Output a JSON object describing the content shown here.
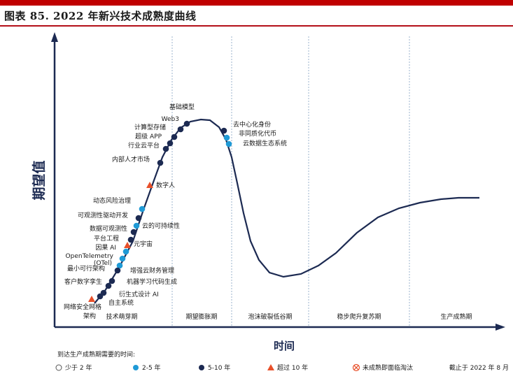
{
  "figure_title": "图表 85. 2022 年新兴技术成熟度曲线",
  "chart_data": {
    "type": "line",
    "title": "图表 85. 2022 年新兴技术成熟度曲线",
    "xlabel": "时间",
    "ylabel": "期望值",
    "phases": [
      "技术萌芽期",
      "期望膨胀期",
      "泡沫破裂低谷期",
      "稳步爬升复苏期",
      "生产成熟期"
    ],
    "legend_title": "到达生产成熟期需要的时间:",
    "legend": [
      {
        "key": "lt2",
        "label": "少于 2 年",
        "marker": "circle-open",
        "color": "#ffffff"
      },
      {
        "key": "2to5",
        "label": "2-5 年",
        "marker": "circle",
        "color": "#1f9ad6"
      },
      {
        "key": "5to10",
        "label": "5-10 年",
        "marker": "circle",
        "color": "#1c2a52"
      },
      {
        "key": "gt10",
        "label": "超过 10 年",
        "marker": "triangle",
        "color": "#e8502a"
      },
      {
        "key": "obsolete",
        "label": "未成熟即面临淘汰",
        "marker": "x-circle",
        "color": "#e8502a"
      }
    ],
    "as_of": "截止于 2022 年 8 月",
    "technologies": [
      {
        "name": "基础模型",
        "category": "5to10"
      },
      {
        "name": "Web3",
        "category": "5to10"
      },
      {
        "name": "计算型存储",
        "category": "5to10"
      },
      {
        "name": "超级 APP",
        "category": "5to10"
      },
      {
        "name": "行业云平台",
        "category": "5to10"
      },
      {
        "name": "内部人才市场",
        "category": "5to10"
      },
      {
        "name": "数字人",
        "category": "gt10"
      },
      {
        "name": "动态风险治理",
        "category": "2to5"
      },
      {
        "name": "可观测性驱动开发",
        "category": "5to10"
      },
      {
        "name": "云的可持续性",
        "category": "2to5"
      },
      {
        "name": "数据可观测性",
        "category": "5to10"
      },
      {
        "name": "平台工程",
        "category": "5to10"
      },
      {
        "name": "元宇宙",
        "category": "gt10"
      },
      {
        "name": "因果 AI",
        "category": "2to5"
      },
      {
        "name": "OpenTelemetry (OTel)",
        "category": "2to5"
      },
      {
        "name": "最小可行架构",
        "category": "2to5"
      },
      {
        "name": "增强云财务管理",
        "category": "5to10"
      },
      {
        "name": "客户数字孪生",
        "category": "5to10"
      },
      {
        "name": "机器学习代码生成",
        "category": "5to10"
      },
      {
        "name": "衍生式设计 AI",
        "category": "5to10"
      },
      {
        "name": "自主系统",
        "category": "5to10"
      },
      {
        "name": "网络安全网格架构",
        "category": "gt10"
      },
      {
        "name": "去中心化身份",
        "category": "5to10"
      },
      {
        "name": "非同质化代币",
        "category": "2to5"
      },
      {
        "name": "云数据生态系统",
        "category": "2to5"
      }
    ]
  }
}
